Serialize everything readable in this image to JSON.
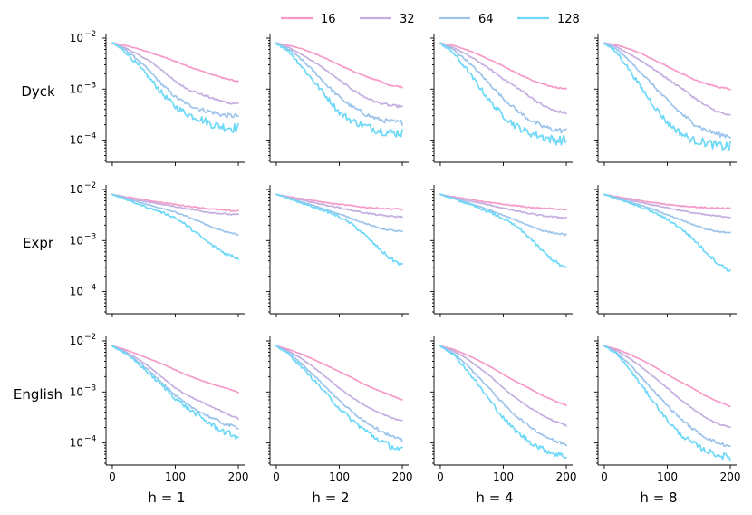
{
  "chart_data": {
    "type": "line",
    "layout": "grid",
    "rows": [
      "Dyck",
      "Expr",
      "English"
    ],
    "columns": [
      "h = 1",
      "h = 2",
      "h = 4",
      "h = 8"
    ],
    "yscale": "log",
    "ylim": [
      4e-05,
      0.01
    ],
    "xlim": [
      -10,
      210
    ],
    "xticks": [
      0,
      100,
      200
    ],
    "xtick_labels": [
      "0",
      "100",
      "200"
    ],
    "yticks": [
      0.01,
      0.001,
      0.0001
    ],
    "ytick_labels": [
      "10",
      "10",
      "10"
    ],
    "ytick_exponents": [
      "−2",
      "−3",
      "−4"
    ],
    "legend": {
      "placement": "top-center",
      "entries": [
        {
          "label": "16",
          "color": "#f59ac8"
        },
        {
          "label": "32",
          "color": "#c4aee0"
        },
        {
          "label": "64",
          "color": "#9cc4ea"
        },
        {
          "label": "128",
          "color": "#6dd8f7"
        }
      ]
    },
    "x": [
      0,
      20,
      40,
      60,
      80,
      100,
      120,
      140,
      160,
      180,
      200
    ],
    "panels": [
      {
        "row": "Dyck",
        "column": "h = 1",
        "noise": [
          0.02,
          0.04,
          0.08,
          0.15
        ],
        "series": [
          {
            "name": "16",
            "values": [
              0.008,
              0.0072,
              0.0062,
              0.0052,
              0.0043,
              0.0035,
              0.0028,
              0.0023,
              0.0019,
              0.0016,
              0.0014
            ]
          },
          {
            "name": "32",
            "values": [
              0.008,
              0.0065,
              0.0048,
              0.0035,
              0.0023,
              0.0014,
              0.001,
              0.0008,
              0.00065,
              0.00055,
              0.00052
            ]
          },
          {
            "name": "64",
            "values": [
              0.008,
              0.006,
              0.0038,
              0.0022,
              0.0012,
              0.0007,
              0.0005,
              0.0004,
              0.00035,
              0.0003,
              0.0003
            ]
          },
          {
            "name": "128",
            "values": [
              0.008,
              0.0055,
              0.003,
              0.0016,
              0.0008,
              0.00045,
              0.00032,
              0.00026,
              0.0002,
              0.00018,
              0.00017
            ]
          }
        ]
      },
      {
        "row": "Dyck",
        "column": "h = 2",
        "noise": [
          0.02,
          0.04,
          0.08,
          0.15
        ],
        "series": [
          {
            "name": "16",
            "values": [
              0.008,
              0.0072,
              0.0062,
              0.005,
              0.0039,
              0.003,
              0.0023,
              0.0018,
              0.0015,
              0.0012,
              0.0011
            ]
          },
          {
            "name": "32",
            "values": [
              0.008,
              0.0065,
              0.0048,
              0.0034,
              0.0023,
              0.0015,
              0.001,
              0.0007,
              0.00055,
              0.00048,
              0.00045
            ]
          },
          {
            "name": "64",
            "values": [
              0.008,
              0.006,
              0.0038,
              0.0022,
              0.0012,
              0.0007,
              0.00045,
              0.00033,
              0.00026,
              0.00023,
              0.00022
            ]
          },
          {
            "name": "128",
            "values": [
              0.008,
              0.0055,
              0.0028,
              0.0014,
              0.0007,
              0.00035,
              0.00024,
              0.00019,
              0.00016,
              0.00014,
              0.00014
            ]
          }
        ]
      },
      {
        "row": "Dyck",
        "column": "h = 4",
        "noise": [
          0.02,
          0.04,
          0.08,
          0.15
        ],
        "series": [
          {
            "name": "16",
            "values": [
              0.008,
              0.0072,
              0.006,
              0.0048,
              0.0037,
              0.0028,
              0.0021,
              0.0016,
              0.0013,
              0.0011,
              0.001
            ]
          },
          {
            "name": "32",
            "values": [
              0.008,
              0.0066,
              0.0049,
              0.0035,
              0.0024,
              0.0016,
              0.0011,
              0.00075,
              0.0005,
              0.00038,
              0.00034
            ]
          },
          {
            "name": "64",
            "values": [
              0.008,
              0.006,
              0.0038,
              0.0022,
              0.0012,
              0.00066,
              0.0004,
              0.00026,
              0.00019,
              0.00016,
              0.00015
            ]
          },
          {
            "name": "128",
            "values": [
              0.008,
              0.0052,
              0.0026,
              0.0012,
              0.00055,
              0.0003,
              0.00019,
              0.00014,
              0.00012,
              0.0001,
              0.0001
            ]
          }
        ]
      },
      {
        "row": "Dyck",
        "column": "h = 8",
        "noise": [
          0.02,
          0.04,
          0.08,
          0.15
        ],
        "series": [
          {
            "name": "16",
            "values": [
              0.008,
              0.0073,
              0.0061,
              0.0049,
              0.0037,
              0.0028,
              0.0021,
              0.0016,
              0.0013,
              0.0011,
              0.001
            ]
          },
          {
            "name": "32",
            "values": [
              0.008,
              0.0066,
              0.0049,
              0.0035,
              0.0024,
              0.0016,
              0.0011,
              0.00072,
              0.00048,
              0.00036,
              0.0003
            ]
          },
          {
            "name": "64",
            "values": [
              0.008,
              0.006,
              0.0036,
              0.002,
              0.0011,
              0.0006,
              0.00035,
              0.00022,
              0.00016,
              0.00013,
              0.00012
            ]
          },
          {
            "name": "128",
            "values": [
              0.008,
              0.0052,
              0.0024,
              0.001,
              0.00045,
              0.00022,
              0.00014,
              0.0001,
              9e-05,
              7.8e-05,
              7.5e-05
            ]
          }
        ]
      },
      {
        "row": "Expr",
        "column": "h = 1",
        "noise": [
          0.025,
          0.025,
          0.025,
          0.06
        ],
        "series": [
          {
            "name": "16",
            "values": [
              0.008,
              0.0072,
              0.0066,
              0.006,
              0.0055,
              0.0051,
              0.0047,
              0.0044,
              0.0041,
              0.0039,
              0.0038
            ]
          },
          {
            "name": "32",
            "values": [
              0.008,
              0.007,
              0.0062,
              0.0056,
              0.0051,
              0.0046,
              0.0042,
              0.0038,
              0.0035,
              0.0033,
              0.0032
            ]
          },
          {
            "name": "64",
            "values": [
              0.008,
              0.0068,
              0.0057,
              0.0049,
              0.0042,
              0.0036,
              0.0029,
              0.0023,
              0.0018,
              0.0015,
              0.0013
            ]
          },
          {
            "name": "128",
            "values": [
              0.008,
              0.0065,
              0.0052,
              0.0043,
              0.0035,
              0.0028,
              0.0019,
              0.0012,
              0.00078,
              0.00055,
              0.00045
            ]
          }
        ]
      },
      {
        "row": "Expr",
        "column": "h = 2",
        "noise": [
          0.025,
          0.025,
          0.025,
          0.06
        ],
        "series": [
          {
            "name": "16",
            "values": [
              0.008,
              0.0072,
              0.0066,
              0.006,
              0.0055,
              0.0051,
              0.0048,
              0.0045,
              0.0043,
              0.0042,
              0.0041
            ]
          },
          {
            "name": "32",
            "values": [
              0.008,
              0.007,
              0.0062,
              0.0055,
              0.0049,
              0.0044,
              0.0039,
              0.0035,
              0.0032,
              0.003,
              0.0029
            ]
          },
          {
            "name": "64",
            "values": [
              0.008,
              0.0068,
              0.0057,
              0.0048,
              0.004,
              0.0033,
              0.0027,
              0.0022,
              0.0018,
              0.0016,
              0.0015
            ]
          },
          {
            "name": "128",
            "values": [
              0.008,
              0.0066,
              0.0054,
              0.0045,
              0.0037,
              0.0029,
              0.0021,
              0.0013,
              0.00075,
              0.00045,
              0.00033
            ]
          }
        ]
      },
      {
        "row": "Expr",
        "column": "h = 4",
        "noise": [
          0.025,
          0.025,
          0.025,
          0.06
        ],
        "series": [
          {
            "name": "16",
            "values": [
              0.008,
              0.0072,
              0.0066,
              0.006,
              0.0055,
              0.0051,
              0.0048,
              0.0045,
              0.0043,
              0.0042,
              0.0041
            ]
          },
          {
            "name": "32",
            "values": [
              0.008,
              0.007,
              0.0062,
              0.0055,
              0.0049,
              0.0043,
              0.0038,
              0.0034,
              0.0031,
              0.0029,
              0.0028
            ]
          },
          {
            "name": "64",
            "values": [
              0.008,
              0.0068,
              0.0057,
              0.0047,
              0.0039,
              0.0031,
              0.0025,
              0.002,
              0.0016,
              0.0014,
              0.0013
            ]
          },
          {
            "name": "128",
            "values": [
              0.008,
              0.0066,
              0.0054,
              0.0044,
              0.0035,
              0.0027,
              0.0019,
              0.0012,
              0.00066,
              0.0004,
              0.00028
            ]
          }
        ]
      },
      {
        "row": "Expr",
        "column": "h = 8",
        "noise": [
          0.025,
          0.025,
          0.025,
          0.06
        ],
        "series": [
          {
            "name": "16",
            "values": [
              0.008,
              0.0072,
              0.0066,
              0.006,
              0.0055,
              0.0051,
              0.0048,
              0.0046,
              0.0044,
              0.0043,
              0.0042
            ]
          },
          {
            "name": "32",
            "values": [
              0.008,
              0.007,
              0.0062,
              0.0055,
              0.0049,
              0.0044,
              0.0039,
              0.0035,
              0.0032,
              0.003,
              0.0029
            ]
          },
          {
            "name": "64",
            "values": [
              0.008,
              0.0068,
              0.0057,
              0.0048,
              0.004,
              0.0032,
              0.0026,
              0.0021,
              0.0017,
              0.0015,
              0.0014
            ]
          },
          {
            "name": "128",
            "values": [
              0.008,
              0.0066,
              0.0054,
              0.0044,
              0.0035,
              0.0026,
              0.0018,
              0.0011,
              0.00062,
              0.00036,
              0.00025
            ]
          }
        ]
      },
      {
        "row": "English",
        "column": "h = 1",
        "noise": [
          0.008,
          0.02,
          0.05,
          0.1
        ],
        "series": [
          {
            "name": "16",
            "values": [
              0.008,
              0.0068,
              0.0055,
              0.0044,
              0.0035,
              0.0027,
              0.0021,
              0.0017,
              0.0014,
              0.0012,
              0.00098
            ]
          },
          {
            "name": "32",
            "values": [
              0.008,
              0.0063,
              0.0045,
              0.003,
              0.0019,
              0.0012,
              0.00085,
              0.00065,
              0.0005,
              0.00038,
              0.0003
            ]
          },
          {
            "name": "64",
            "values": [
              0.008,
              0.006,
              0.004,
              0.0025,
              0.0015,
              0.00085,
              0.00055,
              0.0004,
              0.0003,
              0.00023,
              0.0002
            ]
          },
          {
            "name": "128",
            "values": [
              0.008,
              0.0058,
              0.0037,
              0.0022,
              0.0013,
              0.00075,
              0.00048,
              0.00032,
              0.00022,
              0.00016,
              0.00013
            ]
          }
        ]
      },
      {
        "row": "English",
        "column": "h = 2",
        "noise": [
          0.008,
          0.02,
          0.05,
          0.1
        ],
        "series": [
          {
            "name": "16",
            "values": [
              0.008,
              0.0068,
              0.0055,
              0.0043,
              0.0033,
              0.0025,
              0.0019,
              0.0014,
              0.0011,
              0.00088,
              0.0007
            ]
          },
          {
            "name": "32",
            "values": [
              0.008,
              0.0063,
              0.0045,
              0.003,
              0.0019,
              0.0012,
              0.00078,
              0.00055,
              0.00041,
              0.00032,
              0.00027
            ]
          },
          {
            "name": "64",
            "values": [
              0.008,
              0.0058,
              0.0036,
              0.0021,
              0.0012,
              0.00068,
              0.00041,
              0.00027,
              0.00019,
              0.00014,
              0.00011
            ]
          },
          {
            "name": "128",
            "values": [
              0.008,
              0.0055,
              0.0031,
              0.0017,
              0.0009,
              0.00048,
              0.00028,
              0.00018,
              0.00012,
              8.8e-05,
              7.2e-05
            ]
          }
        ]
      },
      {
        "row": "English",
        "column": "h = 4",
        "noise": [
          0.008,
          0.02,
          0.05,
          0.1
        ],
        "series": [
          {
            "name": "16",
            "values": [
              0.008,
              0.0069,
              0.0055,
              0.0042,
              0.0031,
              0.0022,
              0.0016,
              0.0012,
              0.00088,
              0.00068,
              0.00055
            ]
          },
          {
            "name": "32",
            "values": [
              0.008,
              0.0065,
              0.0047,
              0.0031,
              0.002,
              0.0012,
              0.00076,
              0.00051,
              0.00036,
              0.00027,
              0.00022
            ]
          },
          {
            "name": "64",
            "values": [
              0.008,
              0.0059,
              0.0036,
              0.002,
              0.0011,
              0.00058,
              0.00034,
              0.00022,
              0.00015,
              0.00011,
              9.4e-05
            ]
          },
          {
            "name": "128",
            "values": [
              0.008,
              0.0056,
              0.0029,
              0.0014,
              0.00065,
              0.00031,
              0.00017,
              0.00011,
              7.8e-05,
              6.2e-05,
              5.5e-05
            ]
          }
        ]
      },
      {
        "row": "English",
        "column": "h = 8",
        "noise": [
          0.008,
          0.02,
          0.05,
          0.1
        ],
        "series": [
          {
            "name": "16",
            "values": [
              0.008,
              0.0069,
              0.0055,
              0.0042,
              0.0031,
              0.0022,
              0.0016,
              0.0012,
              0.00085,
              0.00065,
              0.00052
            ]
          },
          {
            "name": "32",
            "values": [
              0.008,
              0.0064,
              0.0046,
              0.003,
              0.0019,
              0.0012,
              0.00072,
              0.00047,
              0.00032,
              0.00024,
              0.0002
            ]
          },
          {
            "name": "64",
            "values": [
              0.008,
              0.0058,
              0.0035,
              0.0019,
              0.001,
              0.00054,
              0.00031,
              0.00019,
              0.00013,
              0.0001,
              8.5e-05
            ]
          },
          {
            "name": "128",
            "values": [
              0.008,
              0.0055,
              0.0028,
              0.0013,
              0.0006,
              0.00028,
              0.00015,
              0.0001,
              7.2e-05,
              5.8e-05,
              5.2e-05
            ]
          }
        ]
      }
    ]
  }
}
